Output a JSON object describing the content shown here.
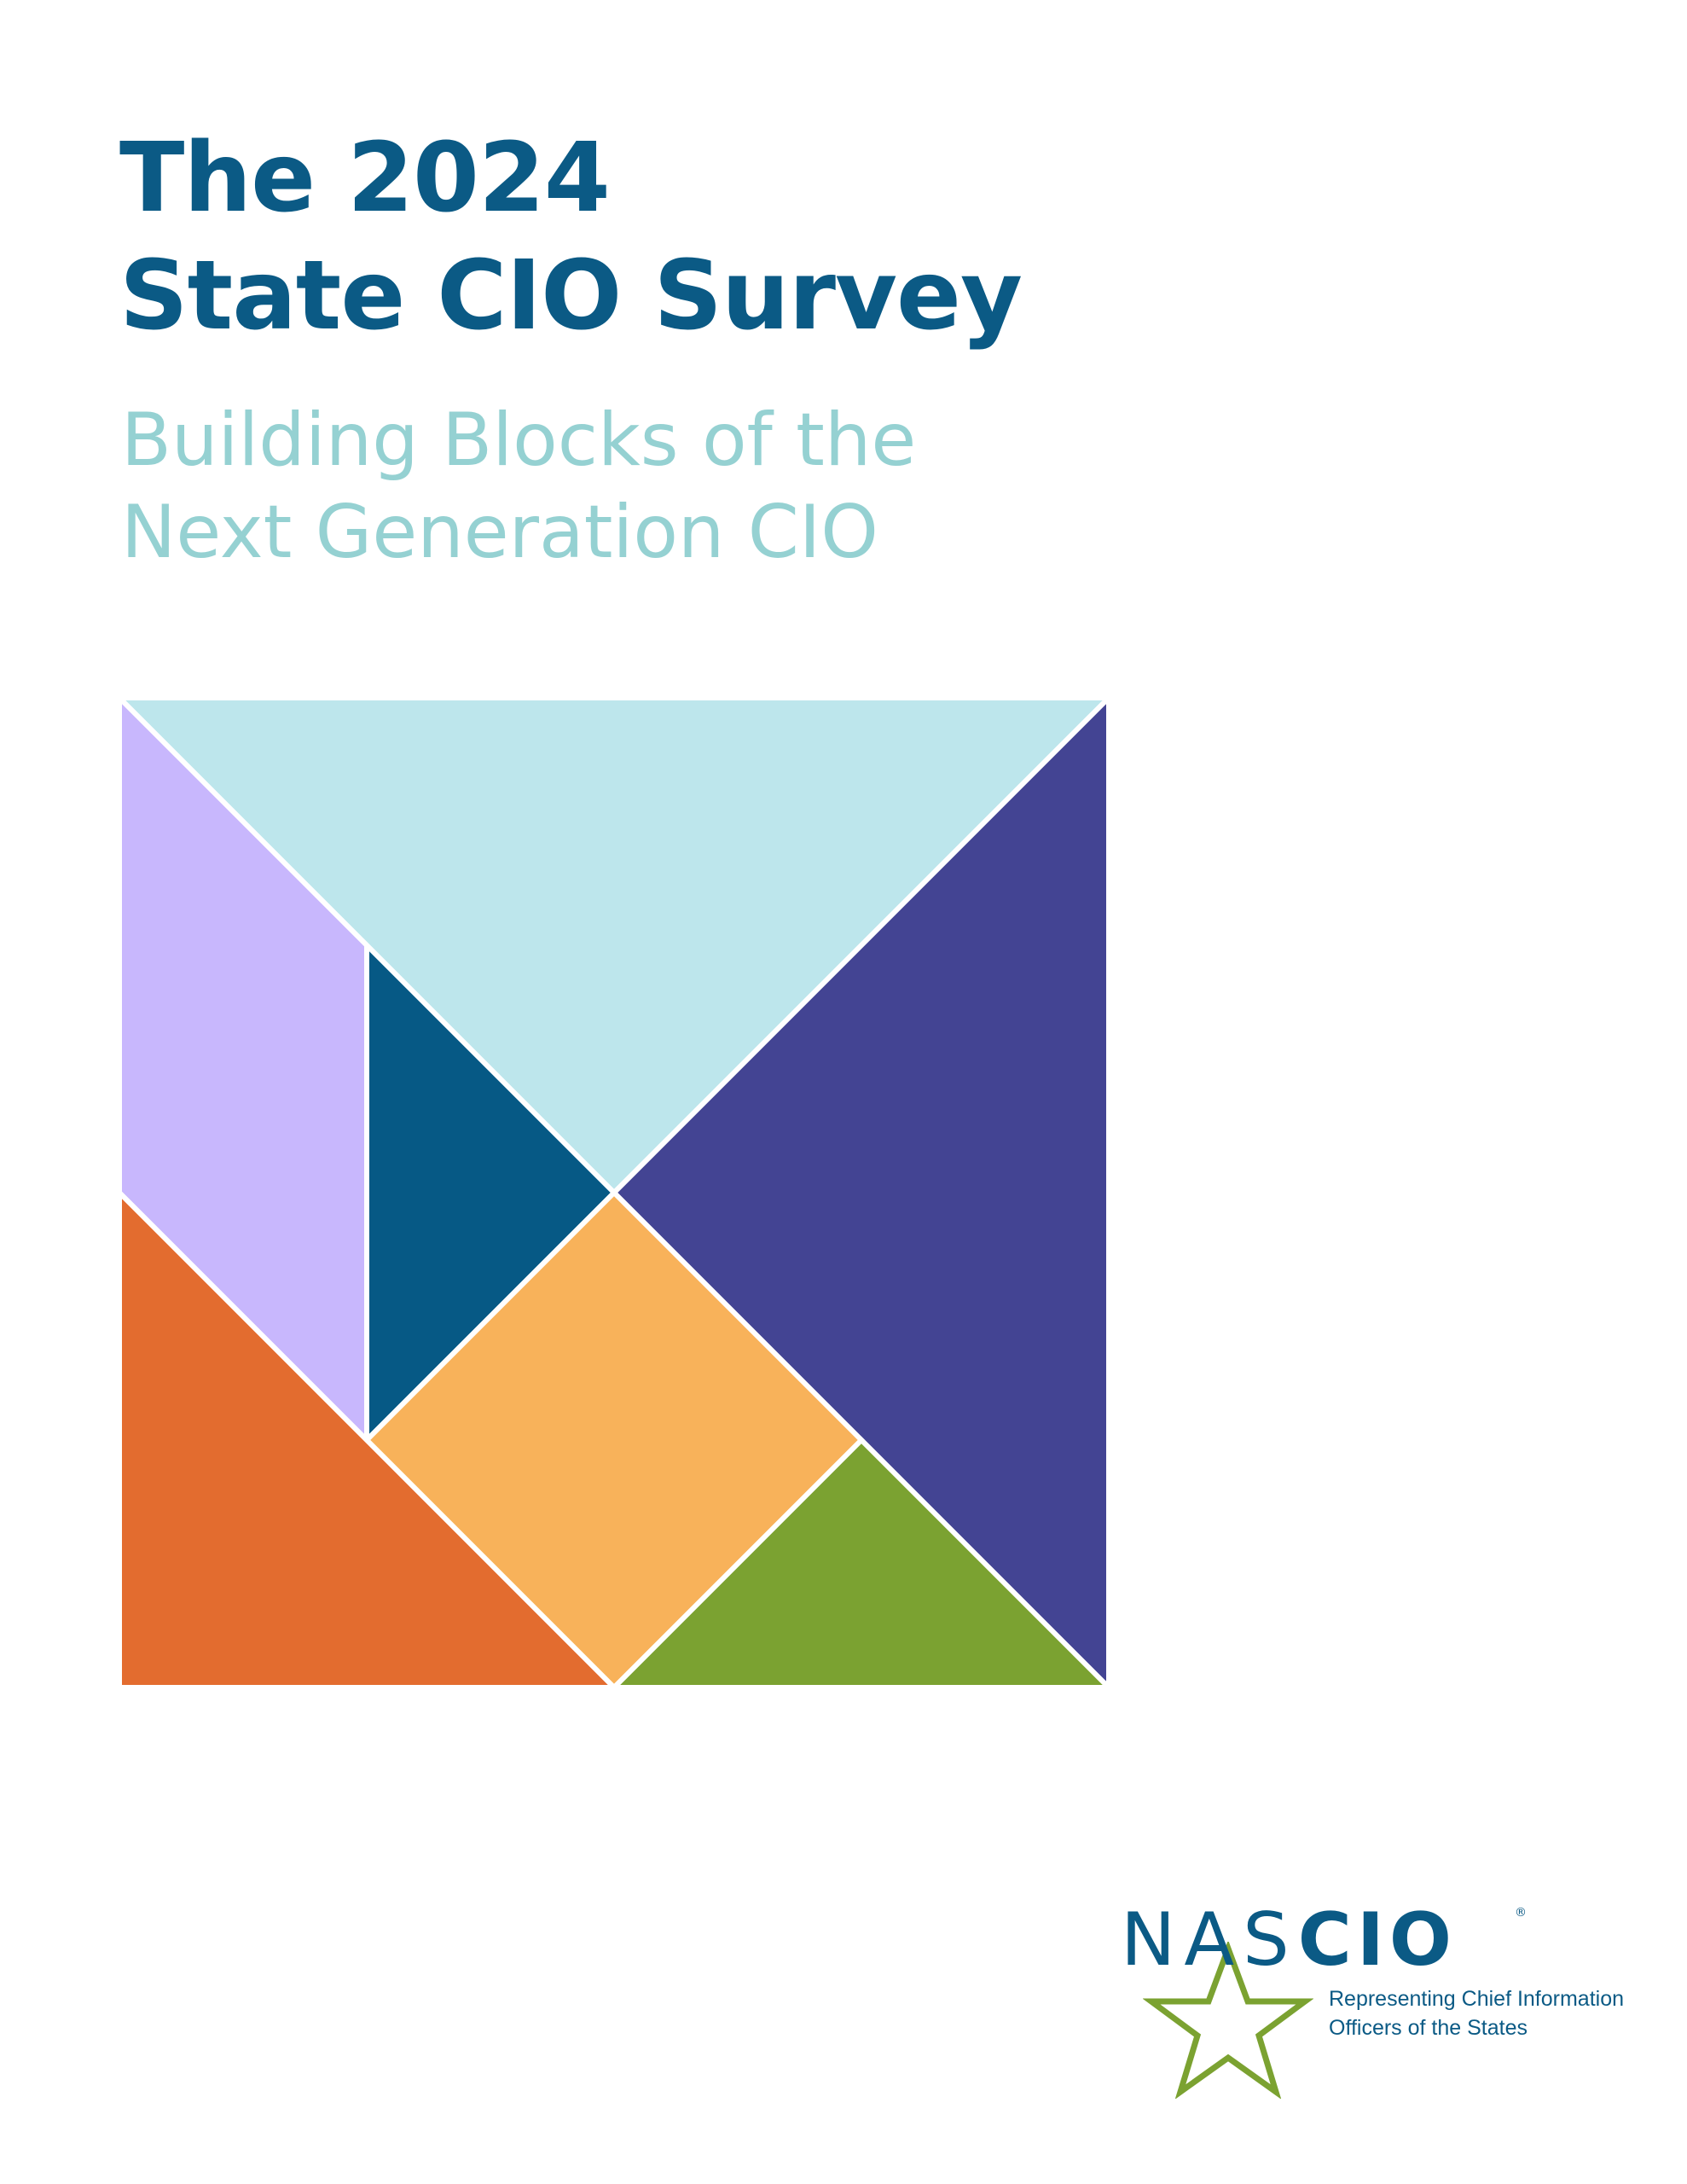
{
  "cover": {
    "title_line1": "The 2024",
    "title_line2": "State CIO Survey",
    "subtitle_line1": "Building Blocks of the",
    "subtitle_line2": "Next Generation CIO"
  },
  "tangram": {
    "piece_colors": {
      "top_triangle": "#bde6ec",
      "right_triangle": "#434493",
      "left_parallelogram": "#c8b7fd",
      "center_triangle": "#065985",
      "square": "#f8b25a",
      "bottom_left_triangle": "#e36c2f",
      "small_triangle": "#7ba231"
    }
  },
  "logo": {
    "letters_thin": "NAS",
    "letters_bold": "CIO",
    "registered": "®",
    "tagline_line1": "Representing Chief Information",
    "tagline_line2": "Officers of the States",
    "star_color": "#7ba231",
    "text_color": "#0b5a85"
  }
}
